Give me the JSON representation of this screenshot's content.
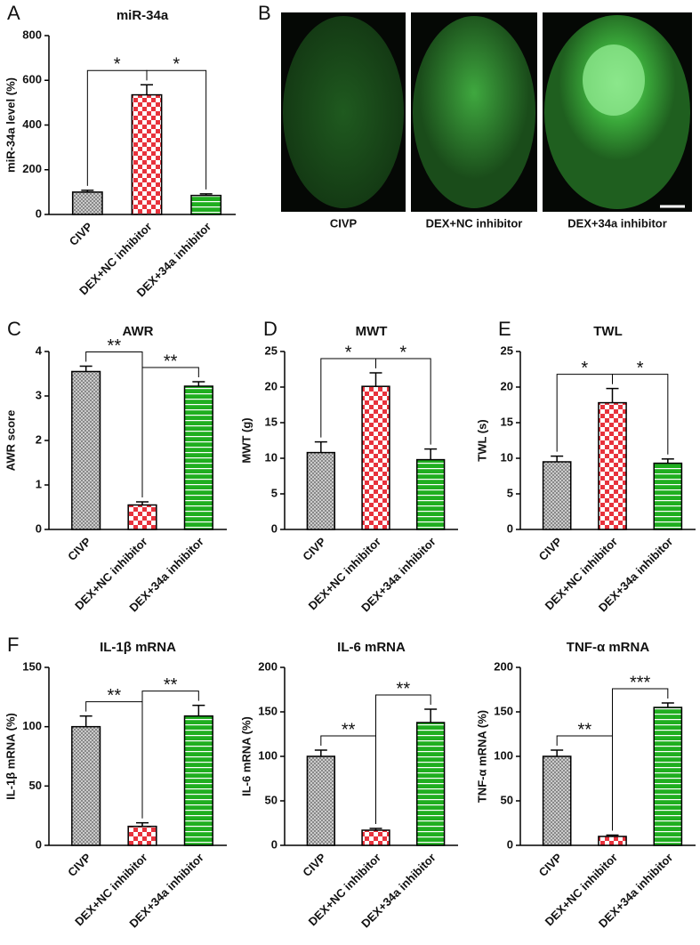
{
  "panel_b": {
    "panel_label": "B",
    "captions": [
      "CIVP",
      "DEX+NC inhibitor",
      "DEX+34a inhibitor"
    ]
  },
  "chart_data": [
    {
      "type": "bar",
      "panel_label": "A",
      "title": "miR-34a",
      "y_label": "miR-34a level (%)",
      "categories": [
        "CIVP",
        "DEX+NC inhibitor",
        "DEX+34a inhibitor"
      ],
      "values": [
        100,
        535,
        85
      ],
      "errors": [
        8,
        45,
        7
      ],
      "colors": [
        "#777777",
        "#e8323c",
        "#1fae1f"
      ],
      "ylim": [
        0,
        800
      ],
      "yticks": [
        0,
        200,
        400,
        600,
        800
      ],
      "annotations": [
        "*",
        "*"
      ]
    },
    {
      "type": "bar",
      "panel_label": "C",
      "title": "AWR",
      "y_label": "AWR score",
      "categories": [
        "CIVP",
        "DEX+NC inhibitor",
        "DEX+34a inhibitor"
      ],
      "values": [
        3.55,
        0.55,
        3.22
      ],
      "errors": [
        0.12,
        0.07,
        0.1
      ],
      "colors": [
        "#777777",
        "#e8323c",
        "#1fae1f"
      ],
      "ylim": [
        0,
        4
      ],
      "yticks": [
        0,
        1,
        2,
        3,
        4
      ],
      "annotations": [
        "**",
        "**"
      ]
    },
    {
      "type": "bar",
      "panel_label": "D",
      "title": "MWT",
      "y_label": "MWT (g)",
      "categories": [
        "CIVP",
        "DEX+NC inhibitor",
        "DEX+34a inhibitor"
      ],
      "values": [
        10.8,
        20.1,
        9.8
      ],
      "errors": [
        1.5,
        1.9,
        1.5
      ],
      "colors": [
        "#777777",
        "#e8323c",
        "#1fae1f"
      ],
      "ylim": [
        0,
        25
      ],
      "yticks": [
        0,
        5,
        10,
        15,
        20,
        25
      ],
      "annotations": [
        "*",
        "*"
      ]
    },
    {
      "type": "bar",
      "panel_label": "E",
      "title": "TWL",
      "y_label": "TWL (s)",
      "categories": [
        "CIVP",
        "DEX+NC inhibitor",
        "DEX+34a inhibitor"
      ],
      "values": [
        9.5,
        17.8,
        9.3
      ],
      "errors": [
        0.8,
        2.0,
        0.6
      ],
      "colors": [
        "#777777",
        "#e8323c",
        "#1fae1f"
      ],
      "ylim": [
        0,
        25
      ],
      "yticks": [
        0,
        5,
        10,
        15,
        20,
        25
      ],
      "annotations": [
        "*",
        "*"
      ]
    },
    {
      "type": "bar",
      "panel_label": "F",
      "title": "IL-1β mRNA",
      "y_label": "IL-1β mRNA (%)",
      "categories": [
        "CIVP",
        "DEX+NC inhibitor",
        "DEX+34a inhibitor"
      ],
      "values": [
        100,
        16,
        109
      ],
      "errors": [
        9,
        3,
        9
      ],
      "colors": [
        "#777777",
        "#e8323c",
        "#1fae1f"
      ],
      "ylim": [
        0,
        150
      ],
      "yticks": [
        0,
        50,
        100,
        150
      ],
      "annotations": [
        "**",
        "**"
      ]
    },
    {
      "type": "bar",
      "title": "IL-6 mRNA",
      "y_label": "IL-6 mRNA (%)",
      "categories": [
        "CIVP",
        "DEX+NC inhibitor",
        "DEX+34a inhibitor"
      ],
      "values": [
        100,
        17,
        138
      ],
      "errors": [
        7,
        2,
        15
      ],
      "colors": [
        "#777777",
        "#e8323c",
        "#1fae1f"
      ],
      "ylim": [
        0,
        200
      ],
      "yticks": [
        0,
        50,
        100,
        150,
        200
      ],
      "annotations": [
        "**",
        "**"
      ]
    },
    {
      "type": "bar",
      "title": "TNF-α mRNA",
      "y_label": "TNF-α mRNA (%)",
      "categories": [
        "CIVP",
        "DEX+NC inhibitor",
        "DEX+34a inhibitor"
      ],
      "values": [
        100,
        10,
        155
      ],
      "errors": [
        7,
        1.5,
        5
      ],
      "colors": [
        "#777777",
        "#e8323c",
        "#1fae1f"
      ],
      "ylim": [
        0,
        200
      ],
      "yticks": [
        0,
        50,
        100,
        150,
        200
      ],
      "annotations": [
        "**",
        "***"
      ]
    }
  ]
}
